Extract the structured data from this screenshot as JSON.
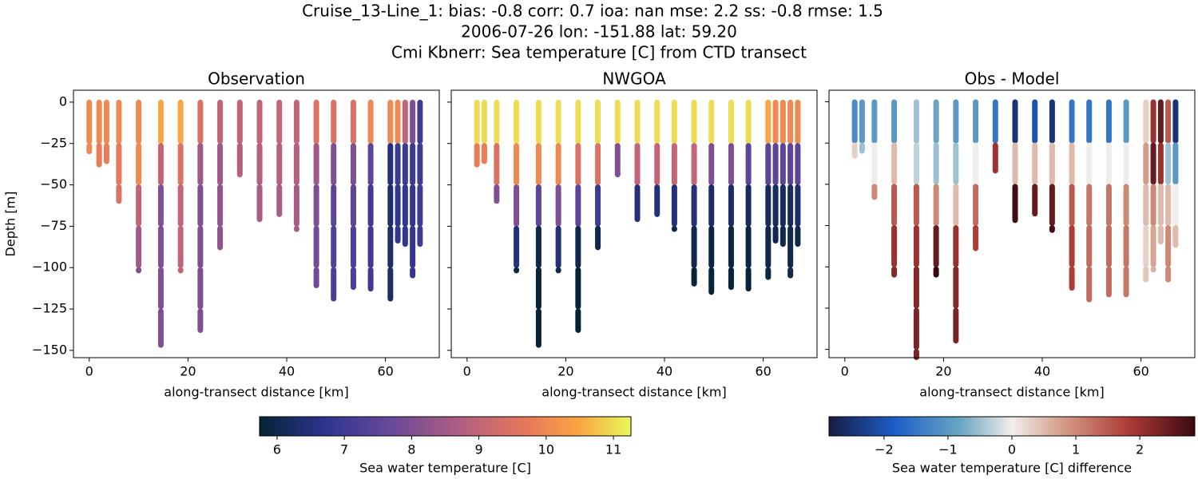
{
  "title": [
    "Cruise_13-Line_1: bias: -0.8  corr: 0.7  ioa: nan  mse: 2.2  ss: -0.8  rmse: 1.5",
    "2006-07-26 lon: -151.88 lat: 59.20",
    "Cmi Kbnerr: Sea temperature [C] from CTD transect"
  ],
  "chart_data": [
    {
      "type": "profile",
      "title": "Observation",
      "xlabel": "along-transect distance [km]",
      "ylabel": "Depth [m]",
      "cmap": "thermal",
      "show_ytick_labels": true,
      "xlim": [
        -3.2,
        70.9
      ],
      "ylim": [
        -154.4,
        7.2
      ],
      "xticks": [
        0,
        20,
        40,
        60
      ],
      "yticks": [
        0,
        {
          "value": -25,
          "label": "−25"
        },
        {
          "value": -50,
          "label": "−50"
        },
        {
          "value": -75,
          "label": "−75"
        },
        {
          "value": -100,
          "label": "−100"
        },
        {
          "value": -125,
          "label": "−125"
        },
        {
          "value": -150,
          "label": "−150"
        }
      ],
      "x": [
        0,
        2,
        3.5,
        6,
        10,
        14.5,
        18.5,
        22.5,
        26.5,
        30.5,
        34.5,
        38.5,
        42,
        46,
        49.5,
        53.5,
        57,
        61,
        62.5,
        64,
        65.5,
        67
      ],
      "bottom": [
        -30,
        -38,
        -36,
        -60,
        -102,
        -147,
        -102,
        -138,
        -88,
        -44,
        -71,
        -68,
        -77,
        -111,
        -119,
        -112,
        -113,
        -119,
        -84,
        -86,
        -105,
        -86
      ],
      "values": [
        [
          10,
          10
        ],
        [
          10,
          9.8
        ],
        [
          10,
          9.8
        ],
        [
          10,
          9.7,
          9.5
        ],
        [
          10,
          10,
          9,
          8.5,
          8
        ],
        [
          10.5,
          9,
          8,
          8,
          8,
          8
        ],
        [
          10.5,
          9.5,
          9,
          9,
          9
        ],
        [
          9.5,
          8.5,
          8,
          8,
          8,
          8
        ],
        [
          9,
          8.5,
          8.3,
          8.2
        ],
        [
          9,
          8.8
        ],
        [
          9,
          8.8,
          8.6
        ],
        [
          9,
          8.8,
          8.6
        ],
        [
          9,
          8.8,
          8.6,
          8.6
        ],
        [
          9.5,
          8.5,
          8,
          7.8,
          7.8
        ],
        [
          9.5,
          8,
          7.5,
          7.3,
          7.2
        ],
        [
          9.5,
          8,
          7.5,
          7.3,
          7.2
        ],
        [
          10,
          7.5,
          7,
          7,
          7
        ],
        [
          10,
          6.5,
          6.3,
          6.3,
          6.3
        ],
        [
          10,
          7,
          6.8,
          6.8
        ],
        [
          9,
          7,
          6.8,
          6.8
        ],
        [
          8,
          7,
          6.8,
          6.8,
          6.8
        ],
        [
          7,
          7,
          7,
          7
        ]
      ]
    },
    {
      "type": "profile",
      "title": "NWGOA",
      "xlabel": "along-transect distance [km]",
      "cmap": "thermal",
      "show_ytick_labels": false,
      "xlim": [
        -3.2,
        70.9
      ],
      "ylim": [
        -154.4,
        7.2
      ],
      "xticks": [
        0,
        20,
        40,
        60
      ],
      "yticks": [
        0,
        -25,
        -50,
        -75,
        -100,
        -125,
        -150
      ],
      "x": [
        2,
        3.5,
        6,
        10,
        14.5,
        18.5,
        22.5,
        26.5,
        30.5,
        34.5,
        38.5,
        42,
        46,
        49.5,
        53.5,
        57,
        61,
        62.5,
        64,
        65.5,
        67
      ],
      "bottom": [
        -38,
        -36,
        -60,
        -102,
        -147,
        -102,
        -138,
        -88,
        -44,
        -71,
        -68,
        -77,
        -110,
        -115,
        -112,
        -113,
        -106,
        -84,
        -86,
        -105,
        -86
      ],
      "values": [
        [
          11,
          9.8
        ],
        [
          11,
          9.8
        ],
        [
          11,
          9.5,
          8
        ],
        [
          11,
          10,
          8,
          6.5,
          5.9
        ],
        [
          11,
          10,
          7.5,
          6,
          5.8,
          5.7
        ],
        [
          11,
          10,
          8,
          6.5,
          6
        ],
        [
          11,
          9.5,
          7.5,
          6,
          5.8,
          5.7
        ],
        [
          11,
          9.5,
          7,
          6
        ],
        [
          11,
          8
        ],
        [
          11,
          9,
          6.5
        ],
        [
          11,
          9,
          6.5
        ],
        [
          11,
          9,
          6.5,
          6
        ],
        [
          11,
          9,
          6.5,
          6,
          5.8
        ],
        [
          11,
          8,
          6.3,
          5.9,
          5.8
        ],
        [
          11,
          8,
          6.3,
          5.9,
          5.8
        ],
        [
          11,
          7.5,
          6.2,
          5.9,
          5.8
        ],
        [
          10.5,
          7.5,
          6.2,
          6,
          5.9
        ],
        [
          10,
          7.5,
          6.2,
          6
        ],
        [
          10,
          7.5,
          6.2,
          6
        ],
        [
          10,
          7.5,
          6.2,
          6,
          6
        ],
        [
          10,
          7.5,
          6.3,
          6
        ]
      ]
    },
    {
      "type": "profile",
      "title": "Obs - Model",
      "xlabel": "along-transect distance [km]",
      "cmap": "balance",
      "show_ytick_labels": false,
      "xlim": [
        -3.2,
        70.9
      ],
      "ylim": [
        -155,
        7
      ],
      "xticks": [
        0,
        20,
        40,
        60
      ],
      "yticks": [
        0,
        -25,
        -50,
        -75,
        -100,
        -125,
        -150
      ],
      "x": [
        2,
        3.5,
        6,
        10,
        14.5,
        18.5,
        22.5,
        26.5,
        30.5,
        34.5,
        38.5,
        42,
        46,
        49.5,
        53.5,
        57,
        61,
        62.5,
        64,
        65.5,
        67
      ],
      "bottom": [
        -33,
        -30,
        -58,
        -105,
        -155,
        -105,
        -145,
        -89,
        -42,
        -72,
        -68,
        -78,
        -113,
        -120,
        -117,
        -117,
        -108,
        -102,
        -85,
        -108,
        -87
      ],
      "values": [
        [
          -1.2,
          0.3
        ],
        [
          -1,
          -0.5
        ],
        [
          -1,
          0,
          1
        ],
        [
          -1,
          0.5,
          1.5,
          2,
          2.2
        ],
        [
          -0.5,
          -0.3,
          1.5,
          2,
          2.2,
          2.3,
          2.3
        ],
        [
          -0.8,
          -0.5,
          1,
          2.5,
          3
        ],
        [
          -1,
          -0.5,
          0.5,
          2,
          2.2,
          2.3
        ],
        [
          -1,
          0,
          1.3,
          1.8
        ],
        [
          -1.5,
          2
        ],
        [
          -2.5,
          0.5,
          2.8
        ],
        [
          -2,
          0.5,
          2.5
        ],
        [
          -2.5,
          0.5,
          2.5,
          2.8
        ],
        [
          -1.5,
          0.5,
          1.5,
          1.8,
          1.8
        ],
        [
          -1.5,
          0,
          1.2,
          1.3,
          1.3
        ],
        [
          -1.5,
          0,
          1.2,
          1.3,
          1.3
        ],
        [
          -1,
          0,
          1,
          1.2,
          1.2
        ],
        [
          0.3,
          0.8,
          0.5,
          0.3,
          0.4
        ],
        [
          2,
          2.5,
          1,
          0.7,
          0.6
        ],
        [
          2.5,
          2,
          0.5,
          0.5
        ],
        [
          1.5,
          -0.5,
          0.5,
          1,
          1
        ],
        [
          -2.5,
          -1,
          0,
          0.5
        ]
      ]
    }
  ],
  "colorbars": [
    {
      "cmap": "thermal",
      "label": "Sea water temperature [C]",
      "clim": [
        5.74,
        11.26
      ],
      "ticks": [
        6,
        7,
        8,
        9,
        10,
        11
      ]
    },
    {
      "cmap": "balance",
      "label": "Sea water temperature [C] difference",
      "clim": [
        -2.86,
        2.86
      ],
      "ticks": [
        {
          "value": -2,
          "label": "−2"
        },
        {
          "value": -1,
          "label": "−1"
        },
        0,
        1,
        2
      ]
    }
  ]
}
